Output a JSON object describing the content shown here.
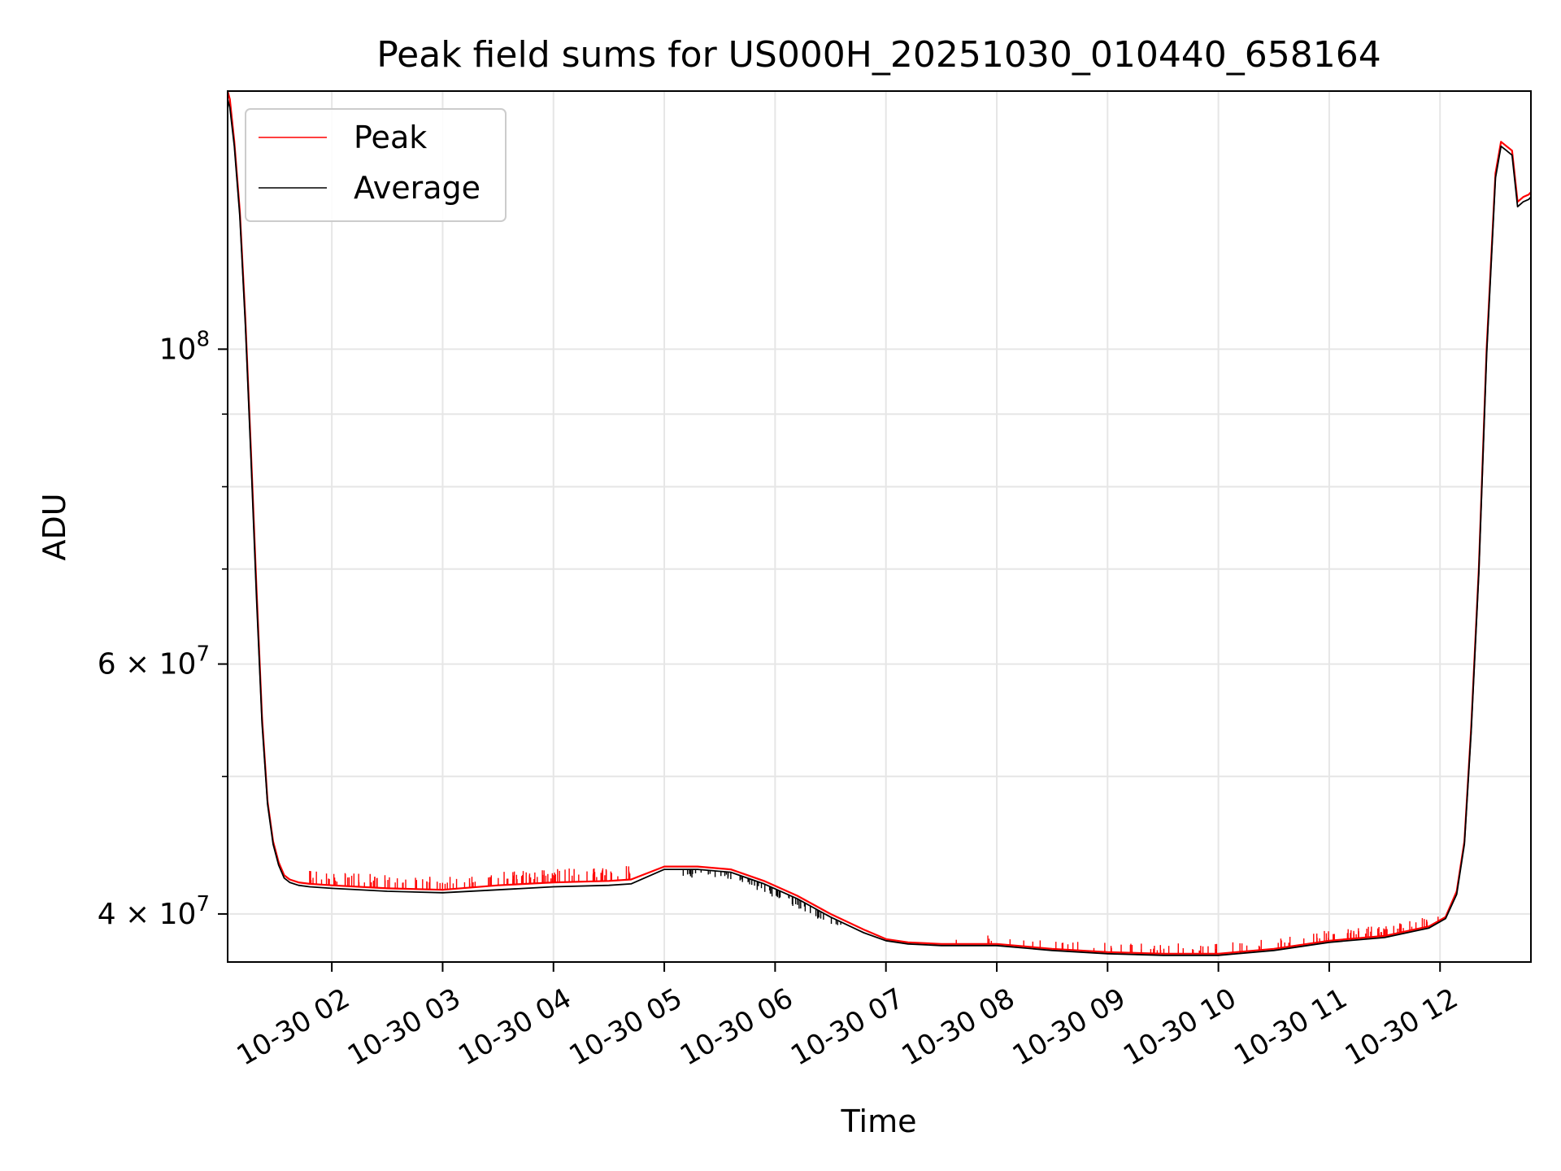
{
  "chart_data": {
    "type": "line",
    "title": "Peak field sums for US000H_20251030_010440_658164",
    "xlabel": "Time",
    "ylabel": "ADU",
    "x_unit": "hours since 10-30 00:00",
    "xlim": [
      1.06,
      12.82
    ],
    "ylim": [
      37000000,
      152000000
    ],
    "yscale": "log",
    "grid": true,
    "legend_position": "top-left",
    "x_ticks": [
      {
        "value": 2,
        "label": "10-30 02"
      },
      {
        "value": 3,
        "label": "10-30 03"
      },
      {
        "value": 4,
        "label": "10-30 04"
      },
      {
        "value": 5,
        "label": "10-30 05"
      },
      {
        "value": 6,
        "label": "10-30 06"
      },
      {
        "value": 7,
        "label": "10-30 07"
      },
      {
        "value": 8,
        "label": "10-30 08"
      },
      {
        "value": 9,
        "label": "10-30 09"
      },
      {
        "value": 10,
        "label": "10-30 10"
      },
      {
        "value": 11,
        "label": "10-30 11"
      },
      {
        "value": 12,
        "label": "10-30 12"
      }
    ],
    "y_major_ticks": [
      {
        "value": 40000000,
        "mantissa": "4",
        "exponent": "7"
      },
      {
        "value": 60000000,
        "mantissa": "6",
        "exponent": "7"
      },
      {
        "value": 100000000,
        "mantissa": "",
        "exponent": "8"
      }
    ],
    "y_minor_ticks": [
      50000000,
      70000000,
      80000000,
      90000000
    ],
    "tick_base": "10",
    "tick_times": "×",
    "series": [
      {
        "name": "Peak",
        "color": "#ff0000",
        "x": [
          1.06,
          1.08,
          1.12,
          1.17,
          1.22,
          1.27,
          1.32,
          1.37,
          1.42,
          1.47,
          1.52,
          1.57,
          1.62,
          1.7,
          1.8,
          2.0,
          2.5,
          3.0,
          3.5,
          4.0,
          4.5,
          4.7,
          5.0,
          5.3,
          5.6,
          5.9,
          6.2,
          6.5,
          6.8,
          7.0,
          7.2,
          7.5,
          8.0,
          8.5,
          9.0,
          9.5,
          10.0,
          10.5,
          11.0,
          11.5,
          11.9,
          12.05,
          12.15,
          12.22,
          12.28,
          12.35,
          12.42,
          12.5,
          12.55,
          12.6,
          12.65,
          12.7,
          12.75,
          12.8,
          12.82
        ],
        "y": [
          152000000,
          150000000,
          140000000,
          125000000,
          105000000,
          85000000,
          68000000,
          55000000,
          48000000,
          45000000,
          43500000,
          42600000,
          42300000,
          42100000,
          42000000,
          41900000,
          41700000,
          41600000,
          41900000,
          42100000,
          42200000,
          42300000,
          43200000,
          43200000,
          43000000,
          42200000,
          41200000,
          40000000,
          39000000,
          38400000,
          38200000,
          38100000,
          38100000,
          37800000,
          37600000,
          37500000,
          37500000,
          37800000,
          38300000,
          38600000,
          39200000,
          39800000,
          41500000,
          45000000,
          54000000,
          70000000,
          100000000,
          133000000,
          140000000,
          139000000,
          138000000,
          127000000,
          128000000,
          128500000,
          129000000
        ]
      },
      {
        "name": "Average",
        "color": "#000000",
        "x": [
          1.06,
          1.08,
          1.12,
          1.17,
          1.22,
          1.27,
          1.32,
          1.37,
          1.42,
          1.47,
          1.52,
          1.57,
          1.62,
          1.7,
          1.8,
          2.0,
          2.5,
          3.0,
          3.5,
          4.0,
          4.5,
          4.7,
          5.0,
          5.3,
          5.6,
          5.9,
          6.2,
          6.5,
          6.8,
          7.0,
          7.2,
          7.5,
          8.0,
          8.5,
          9.0,
          9.5,
          10.0,
          10.5,
          11.0,
          11.5,
          11.9,
          12.05,
          12.15,
          12.22,
          12.28,
          12.35,
          12.42,
          12.5,
          12.55,
          12.6,
          12.65,
          12.7,
          12.75,
          12.8,
          12.82
        ],
        "y": [
          150000000,
          148000000,
          139000000,
          124000000,
          104000000,
          84000000,
          67000000,
          54500000,
          47800000,
          44800000,
          43300000,
          42400000,
          42100000,
          41900000,
          41800000,
          41700000,
          41500000,
          41400000,
          41600000,
          41800000,
          41900000,
          42000000,
          43000000,
          43000000,
          42800000,
          42000000,
          41000000,
          39800000,
          38800000,
          38300000,
          38100000,
          38000000,
          38000000,
          37700000,
          37500000,
          37400000,
          37400000,
          37700000,
          38200000,
          38500000,
          39100000,
          39700000,
          41300000,
          44800000,
          53600000,
          69500000,
          99000000,
          132000000,
          139000000,
          138000000,
          137000000,
          126000000,
          127000000,
          127500000,
          128000000
        ]
      }
    ],
    "spikes": [
      {
        "series": "Peak",
        "x_range": [
          1.8,
          4.7
        ],
        "count": 130,
        "amplitude_frac": 0.018
      },
      {
        "series": "Peak",
        "x_range": [
          7.2,
          9.3
        ],
        "count": 22,
        "amplitude_frac": 0.012
      },
      {
        "series": "Peak",
        "x_range": [
          9.3,
          12.0
        ],
        "count": 90,
        "amplitude_frac": 0.014
      },
      {
        "series": "Average",
        "x_range": [
          5.1,
          6.6
        ],
        "count": 60,
        "amplitude_frac": -0.012
      }
    ]
  }
}
